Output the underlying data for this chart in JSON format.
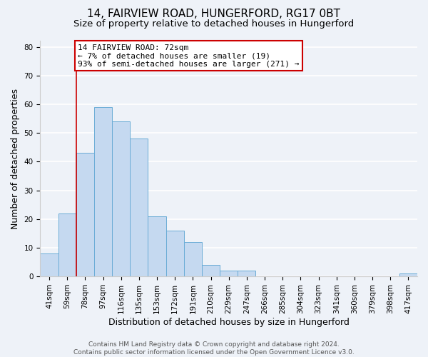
{
  "title_line1": "14, FAIRVIEW ROAD, HUNGERFORD, RG17 0BT",
  "title_line2": "Size of property relative to detached houses in Hungerford",
  "xlabel": "Distribution of detached houses by size in Hungerford",
  "ylabel": "Number of detached properties",
  "bar_labels": [
    "41sqm",
    "59sqm",
    "78sqm",
    "97sqm",
    "116sqm",
    "135sqm",
    "153sqm",
    "172sqm",
    "191sqm",
    "210sqm",
    "229sqm",
    "247sqm",
    "266sqm",
    "285sqm",
    "304sqm",
    "323sqm",
    "341sqm",
    "360sqm",
    "379sqm",
    "398sqm",
    "417sqm"
  ],
  "bar_heights": [
    8,
    22,
    43,
    59,
    54,
    48,
    21,
    16,
    12,
    4,
    2,
    2,
    0,
    0,
    0,
    0,
    0,
    0,
    0,
    0,
    1
  ],
  "bar_color": "#c5d9f0",
  "bar_edge_color": "#6aacd6",
  "background_color": "#eef2f8",
  "grid_color": "#ffffff",
  "vline_color": "#cc0000",
  "annotation_text": "14 FAIRVIEW ROAD: 72sqm\n← 7% of detached houses are smaller (19)\n93% of semi-detached houses are larger (271) →",
  "annotation_box_color": "#ffffff",
  "annotation_box_edge": "#cc0000",
  "ylim": [
    0,
    82
  ],
  "yticks": [
    0,
    10,
    20,
    30,
    40,
    50,
    60,
    70,
    80
  ],
  "footer_line1": "Contains HM Land Registry data © Crown copyright and database right 2024.",
  "footer_line2": "Contains public sector information licensed under the Open Government Licence v3.0.",
  "title_fontsize": 11,
  "subtitle_fontsize": 9.5,
  "axis_label_fontsize": 9,
  "tick_fontsize": 7.5,
  "annotation_fontsize": 8,
  "footer_fontsize": 6.5
}
